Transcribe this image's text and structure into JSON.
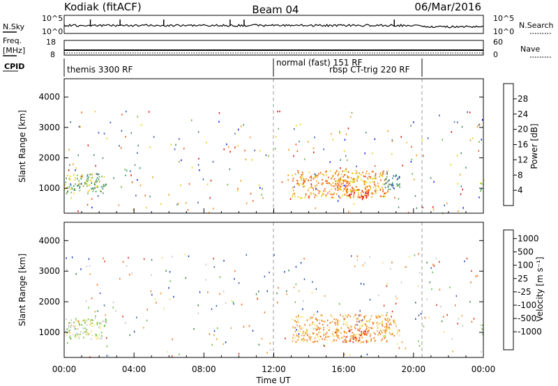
{
  "header": {
    "station": "Kodiak (fitACF)",
    "beam": "Beam 04",
    "date": "06/Mar/2016"
  },
  "labels": {
    "nsky": "N.Sky",
    "nsearch": "N.Search",
    "freq_line1": "Freq.",
    "freq_line2": "[MHz]",
    "nave": "Nave",
    "cpid": "CPID",
    "time_axis": "Time UT",
    "slant_range": "Slant Range [km]",
    "power_label": "Power [dB]",
    "velocity_label": "Velocity [m s⁻¹]"
  },
  "noise_panel": {
    "left_ticks": [
      "10^5",
      "10^0"
    ],
    "right_ticks": [
      "10^5",
      "10^0"
    ]
  },
  "freq_panel": {
    "left_ticks": [
      "18",
      "8"
    ],
    "right_ticks": [
      "60",
      "0"
    ]
  },
  "cpid_segments": [
    {
      "start_hour": 0.0,
      "end_hour": 12.0,
      "label": "themis 3300 RF"
    },
    {
      "start_hour": 12.0,
      "end_hour": 20.5,
      "label": "normal (fast) 151 RF"
    },
    {
      "start_hour": 12.0,
      "end_hour": 20.5,
      "label": "rbsp CT-trig 220 RF"
    }
  ],
  "mode_change_hours": [
    12.0,
    20.5
  ],
  "time_ticks": [
    "00:00",
    "04:00",
    "08:00",
    "12:00",
    "16:00",
    "20:00",
    "00:00"
  ],
  "range_ticks": [
    "1000",
    "2000",
    "3000",
    "4000"
  ],
  "power_colorbar": {
    "ticks": [
      "4",
      "8",
      "12",
      "16",
      "20",
      "24",
      "28"
    ],
    "colors": [
      "#1a1aff",
      "#3a55b8",
      "#3f8f6c",
      "#6cb545",
      "#e8d31a",
      "#f09a1e",
      "#f05a14",
      "#e01414"
    ]
  },
  "velocity_colorbar": {
    "ticks": [
      "1000",
      "500",
      "100",
      "25",
      "-25",
      "-100",
      "-500",
      "-1000"
    ],
    "colors": [
      "#2040c0",
      "#4060a8",
      "#3a8a4a",
      "#6ac040",
      "#c8c8c8",
      "#f0e070",
      "#f0a030",
      "#f07020",
      "#e03020"
    ]
  },
  "chart_data": [
    {
      "type": "heatmap",
      "title": "Power",
      "xlabel": "Time UT",
      "ylabel": "Slant Range [km]",
      "xlim_hours": [
        0,
        24
      ],
      "ylim_km": [
        180,
        4600
      ],
      "colorbar_label": "Power [dB]",
      "colorbar_range": [
        0,
        32
      ],
      "patches": [
        {
          "t0": 0.0,
          "t1": 2.4,
          "r0": 850,
          "r1": 1500,
          "level": 3
        },
        {
          "t0": 13.0,
          "t1": 18.5,
          "r0": 700,
          "r1": 1600,
          "level": 5
        },
        {
          "t0": 16.2,
          "t1": 17.4,
          "r0": 700,
          "r1": 1000,
          "level": 7
        },
        {
          "t0": 15.5,
          "t1": 16.5,
          "r0": 900,
          "r1": 1400,
          "level": 5
        },
        {
          "t0": 18.3,
          "t1": 19.2,
          "r0": 900,
          "r1": 1500,
          "level": 2
        },
        {
          "t0": 23.8,
          "t1": 24.0,
          "r0": 900,
          "r1": 1300,
          "level": 3
        }
      ]
    },
    {
      "type": "heatmap",
      "title": "Velocity",
      "xlabel": "Time UT",
      "ylabel": "Slant Range [km]",
      "xlim_hours": [
        0,
        24
      ],
      "ylim_km": [
        180,
        4600
      ],
      "colorbar_label": "Velocity [m s-1]",
      "colorbar_range": [
        -1000,
        1000
      ],
      "patches": [
        {
          "t0": 0.0,
          "t1": 2.4,
          "r0": 800,
          "r1": 1500,
          "level": 4
        },
        {
          "t0": 13.0,
          "t1": 18.5,
          "r0": 700,
          "r1": 1600,
          "level": 6
        },
        {
          "t0": 15.8,
          "t1": 17.4,
          "r0": 700,
          "r1": 1100,
          "level": 7
        },
        {
          "t0": 18.3,
          "t1": 19.2,
          "r0": 900,
          "r1": 1500,
          "level": 6
        },
        {
          "t0": 23.8,
          "t1": 24.0,
          "r0": 900,
          "r1": 1300,
          "level": 3
        }
      ]
    }
  ]
}
